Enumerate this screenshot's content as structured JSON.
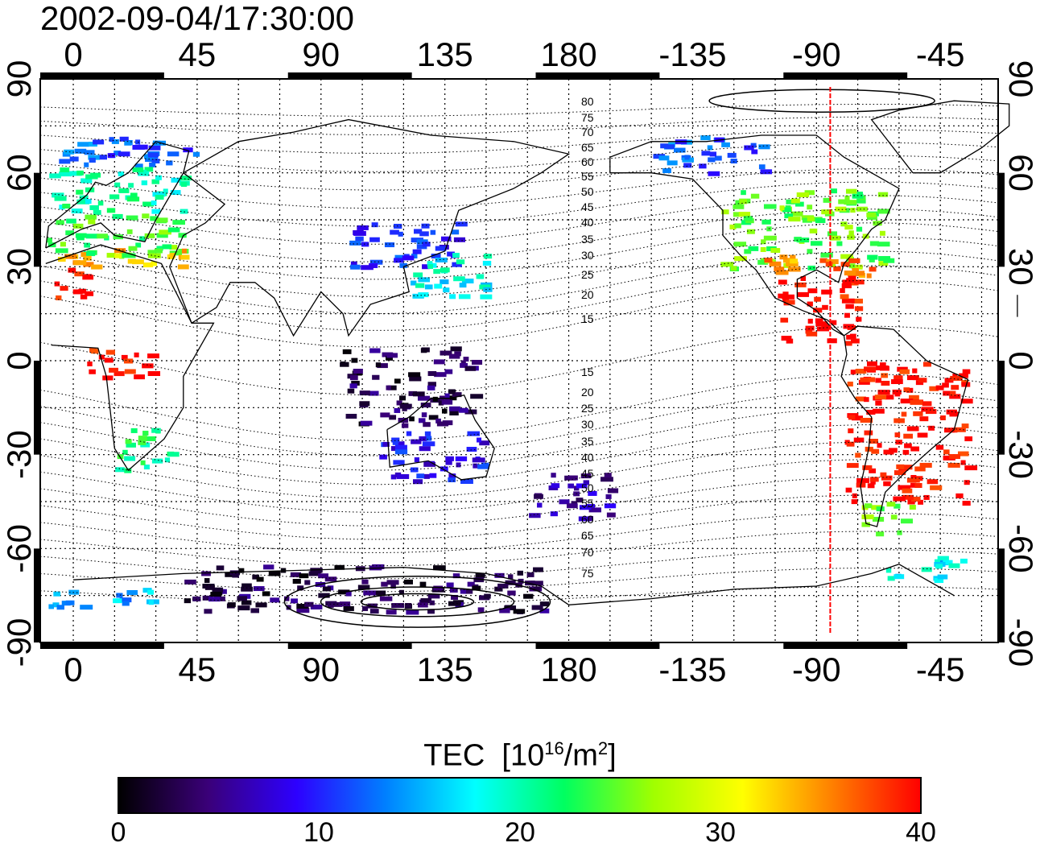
{
  "title": "2002-09-04/17:30:00",
  "axes": {
    "top_lon_ticks": [
      0,
      45,
      90,
      135,
      180,
      -135,
      -90,
      -45
    ],
    "bottom_lon_ticks": [
      0,
      45,
      90,
      135,
      180,
      -135,
      -90,
      -45
    ],
    "left_lat_ticks": [
      90,
      60,
      30,
      0,
      -30,
      -60,
      -90
    ],
    "right_lat_ticks": [
      90,
      60,
      30,
      0,
      -30,
      -60,
      -90
    ],
    "lon_range": [
      -12,
      336
    ],
    "lat_range": [
      -90,
      90
    ],
    "grid": "dotted, 15 degree spacing"
  },
  "contours": {
    "labels_north": [
      "80",
      "75",
      "70",
      "65",
      "60",
      "55",
      "50",
      "45",
      "40",
      "35",
      "30",
      "25",
      "20",
      "15"
    ],
    "labels_south": [
      "15",
      "20",
      "25",
      "30",
      "35",
      "40",
      "45",
      "50",
      "55",
      "60",
      "65",
      "70",
      "75"
    ]
  },
  "marker_line": {
    "lon": -85,
    "color": "#ff0000"
  },
  "colorbar": {
    "title_main": "TEC",
    "title_unit_pre": "[10",
    "title_exp": "16",
    "title_unit_mid": "/m",
    "title_exp2": "2",
    "title_unit_post": "]",
    "ticks": [
      "0",
      "10",
      "20",
      "30",
      "40"
    ],
    "min": 0,
    "max": 40,
    "colors": [
      "#000000",
      "#3a0078",
      "#2d00ff",
      "#0080ff",
      "#00ffff",
      "#00ff60",
      "#a0ff00",
      "#ffff00",
      "#ff8000",
      "#ff0000"
    ]
  },
  "chart_data": {
    "type": "heatmap",
    "title": "2002-09-04/17:30:00",
    "xlabel": "",
    "ylabel": "",
    "value_unit": "TEC [10^16/m^2]",
    "zlim": [
      0,
      40
    ],
    "regions": [
      {
        "lon": [
          -10,
          45
        ],
        "lat": [
          62,
          72
        ],
        "tec": 12
      },
      {
        "lon": [
          -10,
          40
        ],
        "lat": [
          48,
          62
        ],
        "tec": 20
      },
      {
        "lon": [
          -10,
          40
        ],
        "lat": [
          34,
          48
        ],
        "tec": 24
      },
      {
        "lon": [
          -10,
          40
        ],
        "lat": [
          30,
          36
        ],
        "tec": 33
      },
      {
        "lon": [
          -10,
          5
        ],
        "lat": [
          20,
          30
        ],
        "tec": 40
      },
      {
        "lon": [
          5,
          30
        ],
        "lat": [
          -5,
          5
        ],
        "tec": 40
      },
      {
        "lon": [
          15,
          35
        ],
        "lat": [
          -35,
          -20
        ],
        "tec": 22
      },
      {
        "lon": [
          100,
          140
        ],
        "lat": [
          30,
          45
        ],
        "tec": 10
      },
      {
        "lon": [
          120,
          150
        ],
        "lat": [
          20,
          35
        ],
        "tec": 18
      },
      {
        "lon": [
          95,
          145
        ],
        "lat": [
          -20,
          5
        ],
        "tec": 3
      },
      {
        "lon": [
          110,
          150
        ],
        "lat": [
          -38,
          -22
        ],
        "tec": 9
      },
      {
        "lon": [
          165,
          195
        ],
        "lat": [
          -50,
          -35
        ],
        "tec": 6
      },
      {
        "lon": [
          210,
          250
        ],
        "lat": [
          60,
          72
        ],
        "tec": 12
      },
      {
        "lon": [
          235,
          295
        ],
        "lat": [
          30,
          55
        ],
        "tec": 25
      },
      {
        "lon": [
          250,
          290
        ],
        "lat": [
          26,
          34
        ],
        "tec": 35
      },
      {
        "lon": [
          255,
          285
        ],
        "lat": [
          5,
          28
        ],
        "tec": 40
      },
      {
        "lon": [
          280,
          325
        ],
        "lat": [
          -45,
          0
        ],
        "tec": 40
      },
      {
        "lon": [
          285,
          305
        ],
        "lat": [
          -55,
          -45
        ],
        "tec": 25
      },
      {
        "lon": [
          40,
          170
        ],
        "lat": [
          -80,
          -65
        ],
        "tec": 3
      },
      {
        "lon": [
          -10,
          30
        ],
        "lat": [
          -78,
          -72
        ],
        "tec": 15
      },
      {
        "lon": [
          295,
          325
        ],
        "lat": [
          -70,
          -62
        ],
        "tec": 17
      }
    ]
  }
}
